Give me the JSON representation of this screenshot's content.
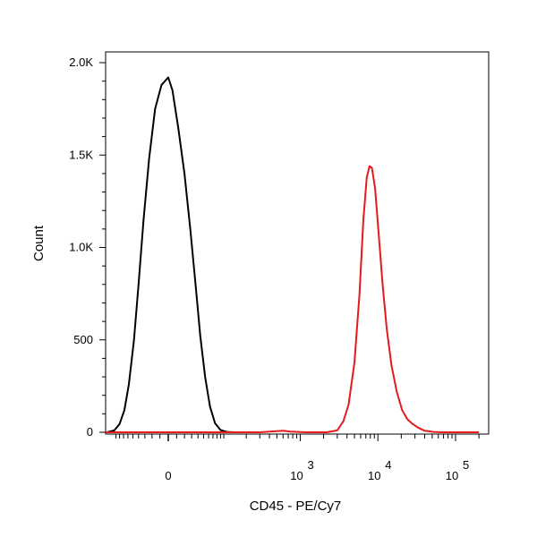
{
  "chart_data": {
    "type": "line",
    "title": "",
    "xlabel": "CD45 - PE/Cy7",
    "ylabel": "Count",
    "x_scale": "biexponential",
    "ylim": [
      0,
      2000
    ],
    "y_ticks": [
      {
        "value": 0,
        "label": "0"
      },
      {
        "value": 500,
        "label": "500"
      },
      {
        "value": 1000,
        "label": "1.0K"
      },
      {
        "value": 1500,
        "label": "1.5K"
      },
      {
        "value": 2000,
        "label": "2.0K"
      }
    ],
    "x_ticks": [
      {
        "value": 0,
        "label": "0",
        "exp": ""
      },
      {
        "value": 1000,
        "label": "10",
        "exp": "3"
      },
      {
        "value": 10000,
        "label": "10",
        "exp": "4"
      },
      {
        "value": 100000,
        "label": "10",
        "exp": "5"
      }
    ],
    "grid": false,
    "legend": "none",
    "series": [
      {
        "color": "#000000",
        "points": [
          [
            -120,
            0
          ],
          [
            -95,
            10
          ],
          [
            -80,
            45
          ],
          [
            -68,
            120
          ],
          [
            -58,
            260
          ],
          [
            -48,
            500
          ],
          [
            -40,
            800
          ],
          [
            -32,
            1150
          ],
          [
            -24,
            1480
          ],
          [
            -16,
            1750
          ],
          [
            -8,
            1880
          ],
          [
            0,
            1920
          ],
          [
            5,
            1850
          ],
          [
            12,
            1650
          ],
          [
            20,
            1400
          ],
          [
            28,
            1100
          ],
          [
            36,
            800
          ],
          [
            44,
            520
          ],
          [
            53,
            300
          ],
          [
            63,
            140
          ],
          [
            75,
            50
          ],
          [
            90,
            12
          ],
          [
            110,
            2
          ],
          [
            140,
            0
          ]
        ]
      },
      {
        "color": "#e41a1c",
        "points": [
          [
            -150,
            0
          ],
          [
            300,
            0
          ],
          [
            450,
            5
          ],
          [
            600,
            8
          ],
          [
            750,
            4
          ],
          [
            1200,
            0
          ],
          [
            2200,
            0
          ],
          [
            3000,
            10
          ],
          [
            3600,
            60
          ],
          [
            4200,
            150
          ],
          [
            5000,
            380
          ],
          [
            5800,
            750
          ],
          [
            6500,
            1150
          ],
          [
            7200,
            1380
          ],
          [
            7800,
            1440
          ],
          [
            8400,
            1430
          ],
          [
            9200,
            1320
          ],
          [
            10200,
            1080
          ],
          [
            11500,
            800
          ],
          [
            13000,
            560
          ],
          [
            15000,
            360
          ],
          [
            17500,
            220
          ],
          [
            20500,
            120
          ],
          [
            24000,
            70
          ],
          [
            28000,
            45
          ],
          [
            33000,
            25
          ],
          [
            40000,
            8
          ],
          [
            52000,
            2
          ],
          [
            70000,
            0
          ],
          [
            200000,
            0
          ]
        ]
      }
    ]
  }
}
